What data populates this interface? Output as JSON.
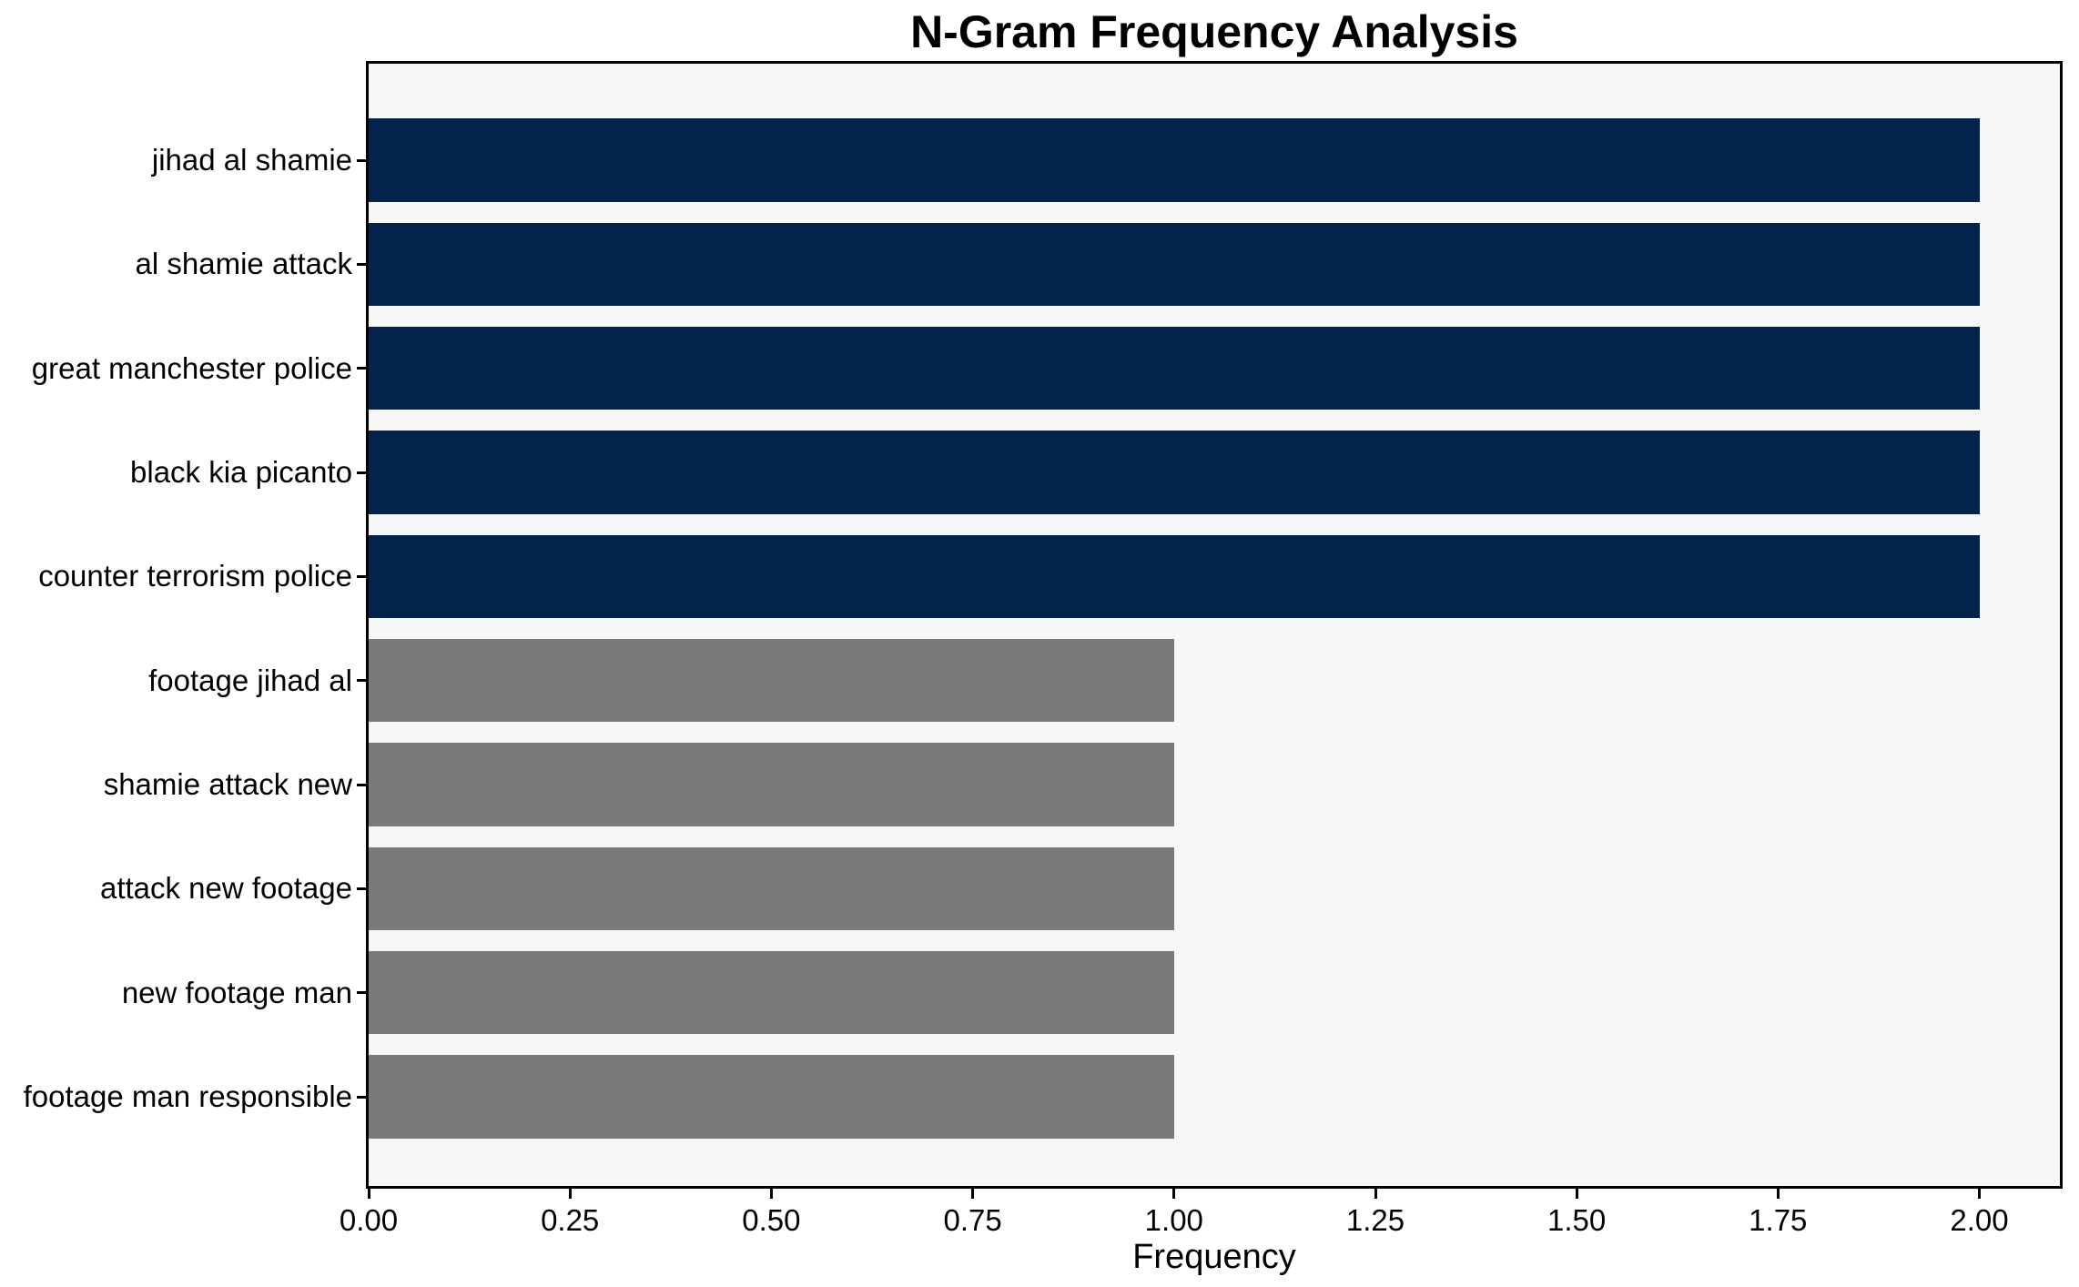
{
  "chart_data": {
    "type": "bar",
    "orientation": "horizontal",
    "title": "N-Gram Frequency Analysis",
    "xlabel": "Frequency",
    "ylabel": "",
    "categories": [
      "jihad al shamie",
      "al shamie attack",
      "great manchester police",
      "black kia picanto",
      "counter terrorism police",
      "footage jihad al",
      "shamie attack new",
      "attack new footage",
      "new footage man",
      "footage man responsible"
    ],
    "values": [
      2,
      2,
      2,
      2,
      2,
      1,
      1,
      1,
      1,
      1
    ],
    "bar_colors": [
      "#03234c",
      "#03234c",
      "#03234c",
      "#03234c",
      "#03234c",
      "#7b7a78",
      "#7b7a78",
      "#7b7a78",
      "#7b7a78",
      "#7b7a78"
    ],
    "xlim": [
      0,
      2.1
    ],
    "xticks": [
      0,
      0.25,
      0.5,
      0.75,
      1.0,
      1.25,
      1.5,
      1.75,
      2.0
    ],
    "xtick_labels": [
      "0.00",
      "0.25",
      "0.50",
      "0.75",
      "1.00",
      "1.25",
      "1.50",
      "1.75",
      "2.00"
    ],
    "grid": false,
    "legend": false,
    "plot_background": "#f7f7f7",
    "frame_color": "#000000",
    "colors": {
      "highlight": "#03234c",
      "muted": "#7b7a78"
    }
  }
}
